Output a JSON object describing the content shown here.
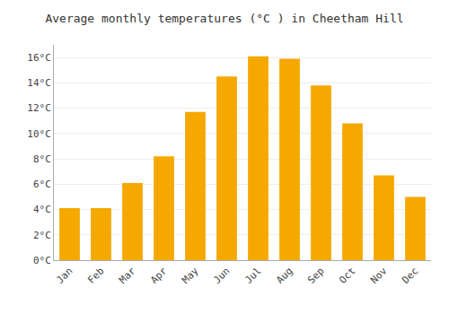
{
  "chart_data": {
    "type": "bar",
    "title": "Average monthly temperatures (°C ) in Cheetham Hill",
    "categories": [
      "Jan",
      "Feb",
      "Mar",
      "Apr",
      "May",
      "Jun",
      "Jul",
      "Aug",
      "Sep",
      "Oct",
      "Nov",
      "Dec"
    ],
    "values": [
      4.1,
      4.1,
      6.1,
      8.2,
      11.7,
      14.5,
      16.1,
      15.9,
      13.8,
      10.8,
      6.7,
      5.0
    ],
    "color": "#F5A800",
    "ylim": [
      0,
      17
    ],
    "yticks": [
      {
        "value": 0,
        "label": "0°C"
      },
      {
        "value": 2,
        "label": "2°C"
      },
      {
        "value": 4,
        "label": "4°C"
      },
      {
        "value": 6,
        "label": "6°C"
      },
      {
        "value": 8,
        "label": "8°C"
      },
      {
        "value": 10,
        "label": "10°C"
      },
      {
        "value": 12,
        "label": "12°C"
      },
      {
        "value": 14,
        "label": "14°C"
      },
      {
        "value": 16,
        "label": "16°C"
      }
    ],
    "grid": true
  }
}
